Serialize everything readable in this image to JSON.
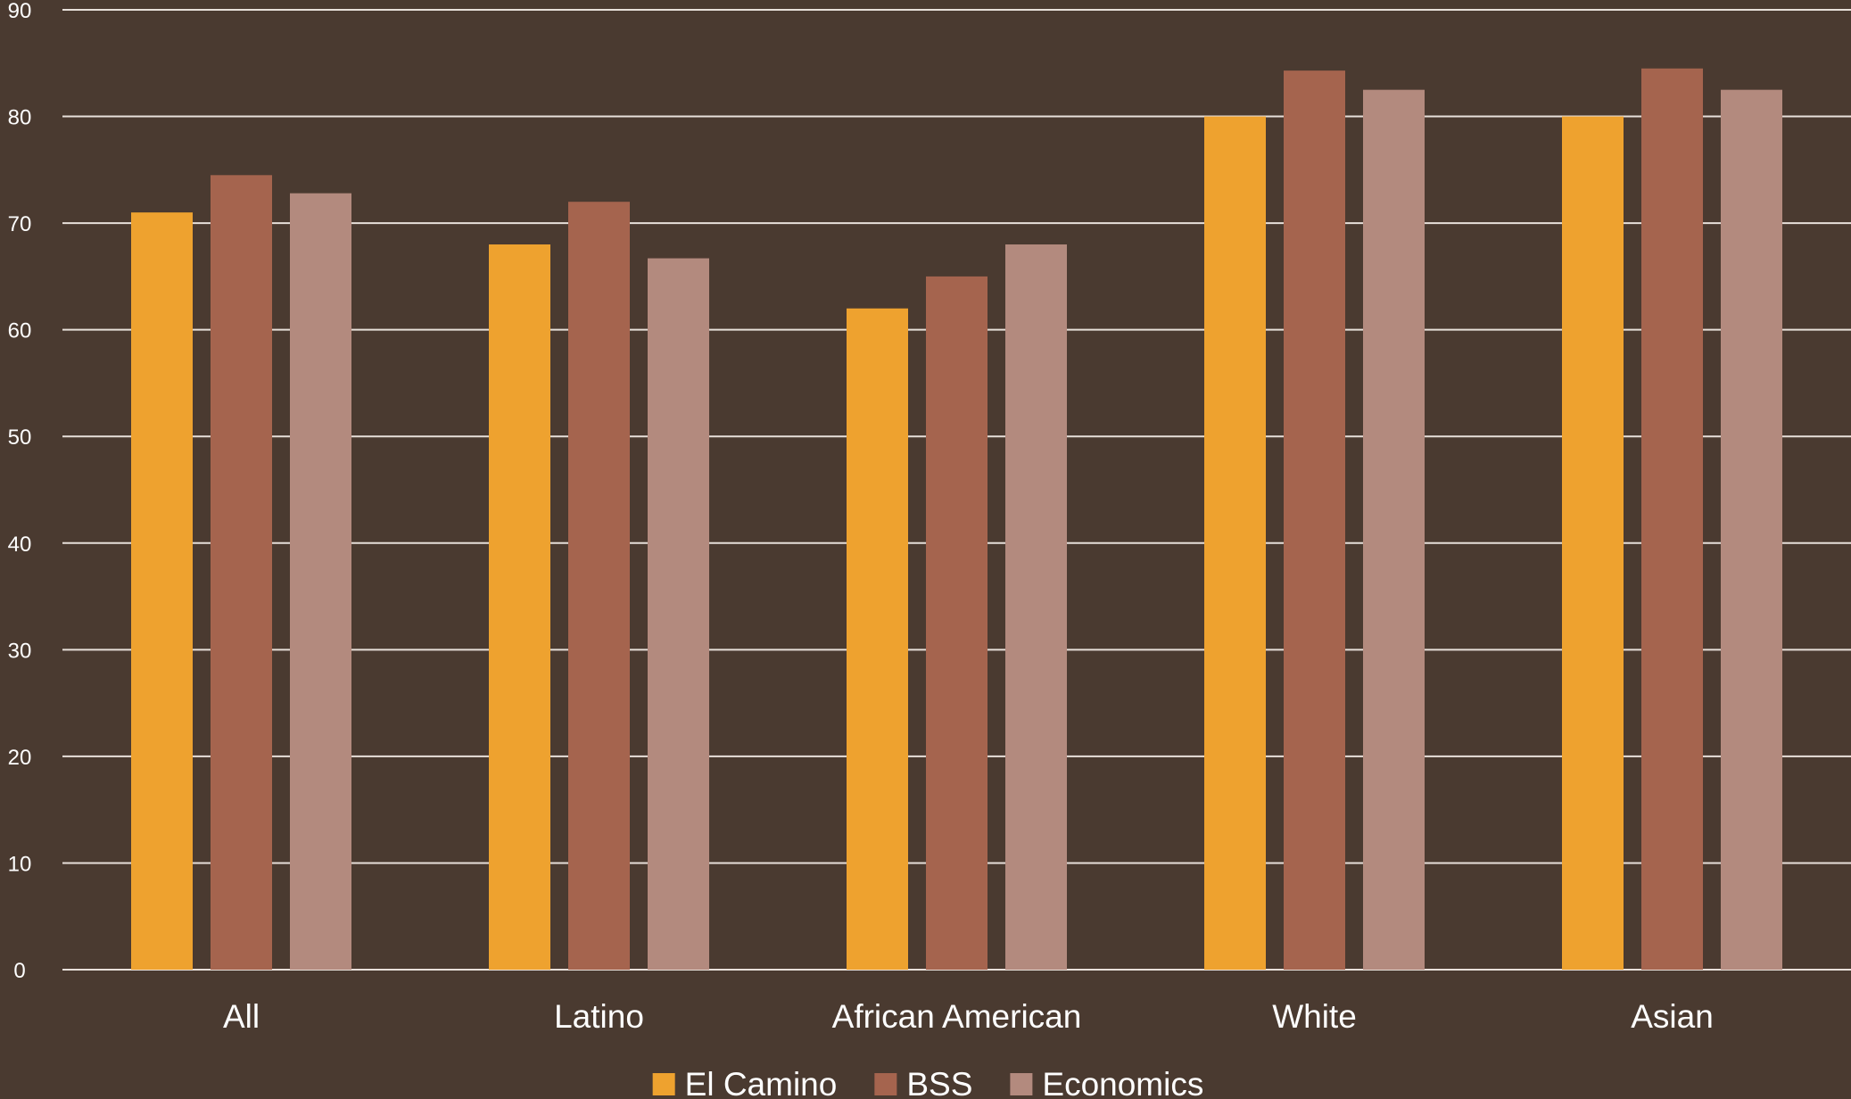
{
  "colors": {
    "background": "#4a3a30",
    "gridline": "#e8e0da",
    "text": "#ffffff"
  },
  "chart_data": {
    "type": "bar",
    "title": "",
    "xlabel": "",
    "ylabel": "",
    "ylim": [
      0,
      90
    ],
    "yticks": [
      "0",
      "10",
      "20",
      "30",
      "40",
      "50",
      "60",
      "70",
      "80",
      "90"
    ],
    "grid": true,
    "legend_position": "bottom",
    "categories": [
      "All",
      "Latino",
      "African American",
      "White",
      "Asian"
    ],
    "series": [
      {
        "name": "El Camino",
        "color": "#eea22f",
        "values": [
          71,
          68,
          62,
          80,
          80
        ]
      },
      {
        "name": "BSS",
        "color": "#a5644e",
        "values": [
          74.5,
          72,
          65,
          84.3,
          84.5
        ]
      },
      {
        "name": "Economics",
        "color": "#b38a7e",
        "values": [
          72.8,
          66.7,
          68,
          82.5,
          82.5
        ]
      }
    ]
  }
}
